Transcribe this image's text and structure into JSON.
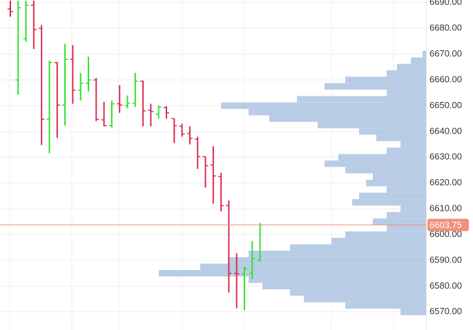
{
  "chart_data": {
    "type": "ohlc",
    "up_color": "#2ee02e",
    "down_color": "#dc2a4c",
    "profile_color": "#b9cce6",
    "price_line_color": "#f2907c",
    "ylim": [
      6563,
      6691
    ],
    "yticks": [
      {
        "value": 6570,
        "label": "6570.00"
      },
      {
        "value": 6580,
        "label": "6580.00"
      },
      {
        "value": 6590,
        "label": "6590.00"
      },
      {
        "value": 6600,
        "label": "6600.00"
      },
      {
        "value": 6610,
        "label": "6610.00"
      },
      {
        "value": 6620,
        "label": "6620.00"
      },
      {
        "value": 6630,
        "label": "6630.00"
      },
      {
        "value": 6640,
        "label": "6640.00"
      },
      {
        "value": 6650,
        "label": "6650.00"
      },
      {
        "value": 6660,
        "label": "6660.00"
      },
      {
        "value": 6670,
        "label": "6670.00"
      },
      {
        "value": 6680,
        "label": "6680.00"
      },
      {
        "value": 6690,
        "label": "6690.00"
      }
    ],
    "grid": true,
    "current_price": {
      "value": 6603.75,
      "label": "6603.75"
    },
    "bars": [
      {
        "open": 6687.5,
        "high": 6690.75,
        "low": 6684.5,
        "close": 6686.5
      },
      {
        "open": 6660,
        "high": 6690.75,
        "low": 6654.25,
        "close": 6688
      },
      {
        "open": 6676,
        "high": 6690.75,
        "low": 6674.75,
        "close": 6689
      },
      {
        "open": 6689,
        "high": 6690.75,
        "low": 6672,
        "close": 6679.5
      },
      {
        "open": 6680,
        "high": 6681.25,
        "low": 6634.75,
        "close": 6644.75
      },
      {
        "open": 6644.75,
        "high": 6667.5,
        "low": 6631.5,
        "close": 6666.75
      },
      {
        "open": 6666.75,
        "high": 6667,
        "low": 6637.5,
        "close": 6650.25
      },
      {
        "open": 6650.25,
        "high": 6674,
        "low": 6642.25,
        "close": 6668
      },
      {
        "open": 6668,
        "high": 6673.5,
        "low": 6650.75,
        "close": 6656
      },
      {
        "open": 6656,
        "high": 6662.75,
        "low": 6652,
        "close": 6658.75
      },
      {
        "open": 6658.75,
        "high": 6669,
        "low": 6655.5,
        "close": 6660
      },
      {
        "open": 6660,
        "high": 6660.75,
        "low": 6644,
        "close": 6644.75
      },
      {
        "open": 6644.5,
        "high": 6651.5,
        "low": 6642,
        "close": 6642.25
      },
      {
        "open": 6642.25,
        "high": 6652,
        "low": 6641.5,
        "close": 6650.75
      },
      {
        "open": 6650.75,
        "high": 6658,
        "low": 6647.25,
        "close": 6650.25
      },
      {
        "open": 6650,
        "high": 6654,
        "low": 6649,
        "close": 6651
      },
      {
        "open": 6651,
        "high": 6662.75,
        "low": 6649.5,
        "close": 6659.5
      },
      {
        "open": 6659.5,
        "high": 6659.75,
        "low": 6642,
        "close": 6648
      },
      {
        "open": 6648.25,
        "high": 6650.75,
        "low": 6642,
        "close": 6647.75
      },
      {
        "open": 6646.75,
        "high": 6650,
        "low": 6645,
        "close": 6649.5
      },
      {
        "open": 6649.25,
        "high": 6649.75,
        "low": 6645,
        "close": 6647.25
      },
      {
        "open": 6645,
        "high": 6645,
        "low": 6635.5,
        "close": 6642.25
      },
      {
        "open": 6642,
        "high": 6643,
        "low": 6638,
        "close": 6639
      },
      {
        "open": 6639.25,
        "high": 6642,
        "low": 6635,
        "close": 6637.25
      },
      {
        "open": 6637,
        "high": 6638,
        "low": 6625.5,
        "close": 6630.25
      },
      {
        "open": 6630.25,
        "high": 6630.25,
        "low": 6618.25,
        "close": 6626.75
      },
      {
        "open": 6627,
        "high": 6634.25,
        "low": 6612,
        "close": 6622.75
      },
      {
        "open": 6622.5,
        "high": 6624,
        "low": 6609,
        "close": 6611.25
      },
      {
        "open": 6611.25,
        "high": 6613.25,
        "low": 6577.5,
        "close": 6585
      },
      {
        "open": 6585,
        "high": 6592.75,
        "low": 6571.5,
        "close": 6584.75
      },
      {
        "open": 6584.75,
        "high": 6587.5,
        "low": 6570.75,
        "close": 6586.75
      },
      {
        "open": 6585,
        "high": 6597.5,
        "low": 6582.75,
        "close": 6590.75
      },
      {
        "open": 6590,
        "high": 6604.5,
        "low": 6589.5,
        "close": 6603.75
      }
    ],
    "volume_profile": {
      "levels": [
        6570,
        6572.5,
        6575,
        6577.5,
        6580,
        6582.5,
        6585,
        6587.5,
        6590,
        6592.5,
        6595,
        6597.5,
        6600,
        6602.5,
        6605,
        6607.5,
        6610,
        6612.5,
        6615,
        6617.5,
        6620,
        6622.5,
        6625,
        6627.5,
        6630,
        6632.5,
        6635,
        6637.5,
        6640,
        6642.5,
        6645,
        6647.5,
        6650,
        6652.5,
        6655,
        6657.5,
        6660,
        6662.5,
        6665,
        6667.5,
        6670
      ],
      "volumes": [
        37,
        117,
        177,
        197,
        237,
        257,
        387,
        327,
        287,
        257,
        197,
        137,
        117,
        57,
        77,
        57,
        37,
        107,
        97,
        57,
        87,
        77,
        117,
        147,
        127,
        57,
        37,
        72,
        97,
        157,
        227,
        257,
        297,
        187,
        57,
        147,
        117,
        57,
        42,
        22,
        5
      ]
    }
  }
}
